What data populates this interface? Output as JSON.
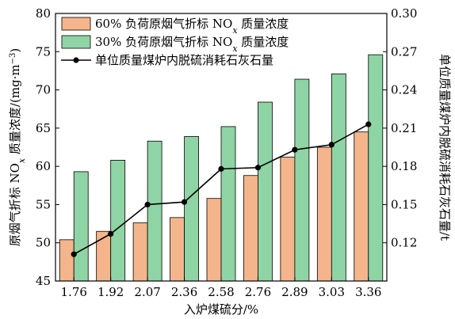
{
  "chart_data": {
    "type": "bar",
    "xlabel": "入炉煤硫分/%",
    "ylabel_left": "原烟气折标 NO",
    "ylabel_left_sub": "x",
    "ylabel_left_tail": " 质量浓度/(mg·m",
    "ylabel_left_sup": "−3",
    "ylabel_left_end": ")",
    "ylabel_right": "单位质量煤炉内脱硫消耗石灰石量/t",
    "categories": [
      "1.76",
      "1.92",
      "2.07",
      "2.36",
      "2.58",
      "2.76",
      "2.89",
      "3.03",
      "3.36"
    ],
    "y_left_lim": [
      45,
      80
    ],
    "y_left_ticks": [
      "45",
      "50",
      "55",
      "60",
      "65",
      "70",
      "75",
      "80"
    ],
    "y_right_lim": [
      0.09,
      0.3
    ],
    "y_right_ticks": [
      "0.12",
      "0.15",
      "0.18",
      "0.21",
      "0.24",
      "0.27",
      "0.30"
    ],
    "legend_position": "top-left",
    "series": [
      {
        "name": "60% 负荷原烟气折标 NOx 质量浓度",
        "legend_pre": "60% 负荷原烟气折标 NO",
        "legend_sub": "x",
        "legend_post": " 质量浓度",
        "type": "bar",
        "axis": "left",
        "color": "#f5b58c",
        "values": [
          50.4,
          51.5,
          52.6,
          53.3,
          55.8,
          58.8,
          61.2,
          62.5,
          64.5
        ]
      },
      {
        "name": "30% 负荷原烟气折标 NOx 质量浓度",
        "legend_pre": "30% 负荷原烟气折标 NO",
        "legend_sub": "x",
        "legend_post": " 质量浓度",
        "type": "bar",
        "axis": "left",
        "color": "#8fd4a4",
        "values": [
          59.3,
          60.8,
          63.3,
          63.9,
          65.2,
          68.4,
          71.4,
          72.1,
          74.6
        ]
      },
      {
        "name": "单位质量煤炉内脱硫消耗石灰石量",
        "legend_pre": "单位质量煤炉内脱硫消耗石灰石量",
        "legend_sub": "",
        "legend_post": "",
        "type": "line",
        "axis": "right",
        "color": "#000000",
        "values": [
          0.111,
          0.127,
          0.15,
          0.152,
          0.178,
          0.179,
          0.193,
          0.197,
          0.213
        ]
      }
    ]
  }
}
